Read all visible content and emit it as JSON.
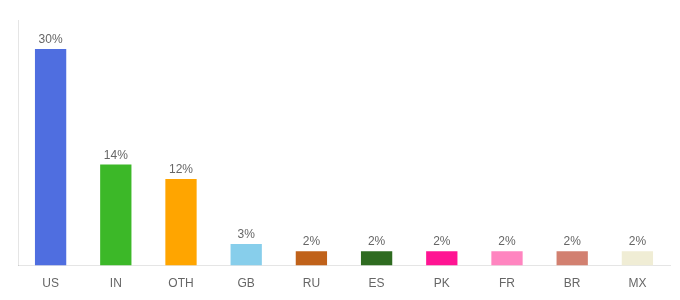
{
  "chart_data": {
    "type": "bar",
    "categories": [
      "US",
      "IN",
      "OTH",
      "GB",
      "RU",
      "ES",
      "PK",
      "FR",
      "BR",
      "MX"
    ],
    "values": [
      30,
      14,
      12,
      3,
      2,
      2,
      2,
      2,
      2,
      2
    ],
    "value_labels": [
      "30%",
      "14%",
      "12%",
      "3%",
      "2%",
      "2%",
      "2%",
      "2%",
      "2%",
      "2%"
    ],
    "colors": [
      "#4F6EE0",
      "#3CB828",
      "#FFA500",
      "#87CEEB",
      "#C0621A",
      "#2E6B20",
      "#FF1493",
      "#FF85C0",
      "#D28070",
      "#F0EDD5"
    ],
    "ylim": [
      0,
      34
    ],
    "grid": false,
    "data_labels": true,
    "tick_labels": "x"
  }
}
